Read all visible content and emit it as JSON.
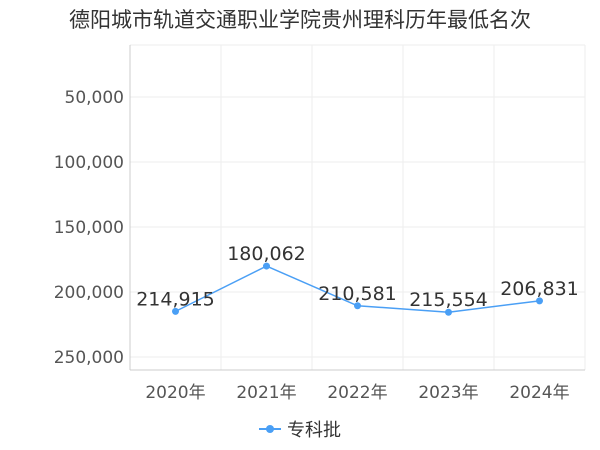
{
  "chart_data": {
    "type": "line",
    "title": "德阳城市轨道交通职业学院贵州理科历年最低名次",
    "categories": [
      "2020年",
      "2021年",
      "2022年",
      "2023年",
      "2024年"
    ],
    "series": [
      {
        "name": "专科批",
        "values": [
          214915,
          180062,
          210581,
          215554,
          206831
        ],
        "value_labels": [
          "214,915",
          "180,062",
          "210,581",
          "215,554",
          "206,831"
        ]
      }
    ],
    "y_axis": {
      "inverted": true,
      "range": [
        10000,
        260000
      ],
      "ticks": [
        50000,
        100000,
        150000,
        200000,
        250000
      ],
      "tick_labels": [
        "50,000",
        "100,000",
        "150,000",
        "200,000",
        "250,000"
      ]
    },
    "grid": true,
    "legend_position": "bottom-center",
    "series_color": "#4a9ff5"
  }
}
